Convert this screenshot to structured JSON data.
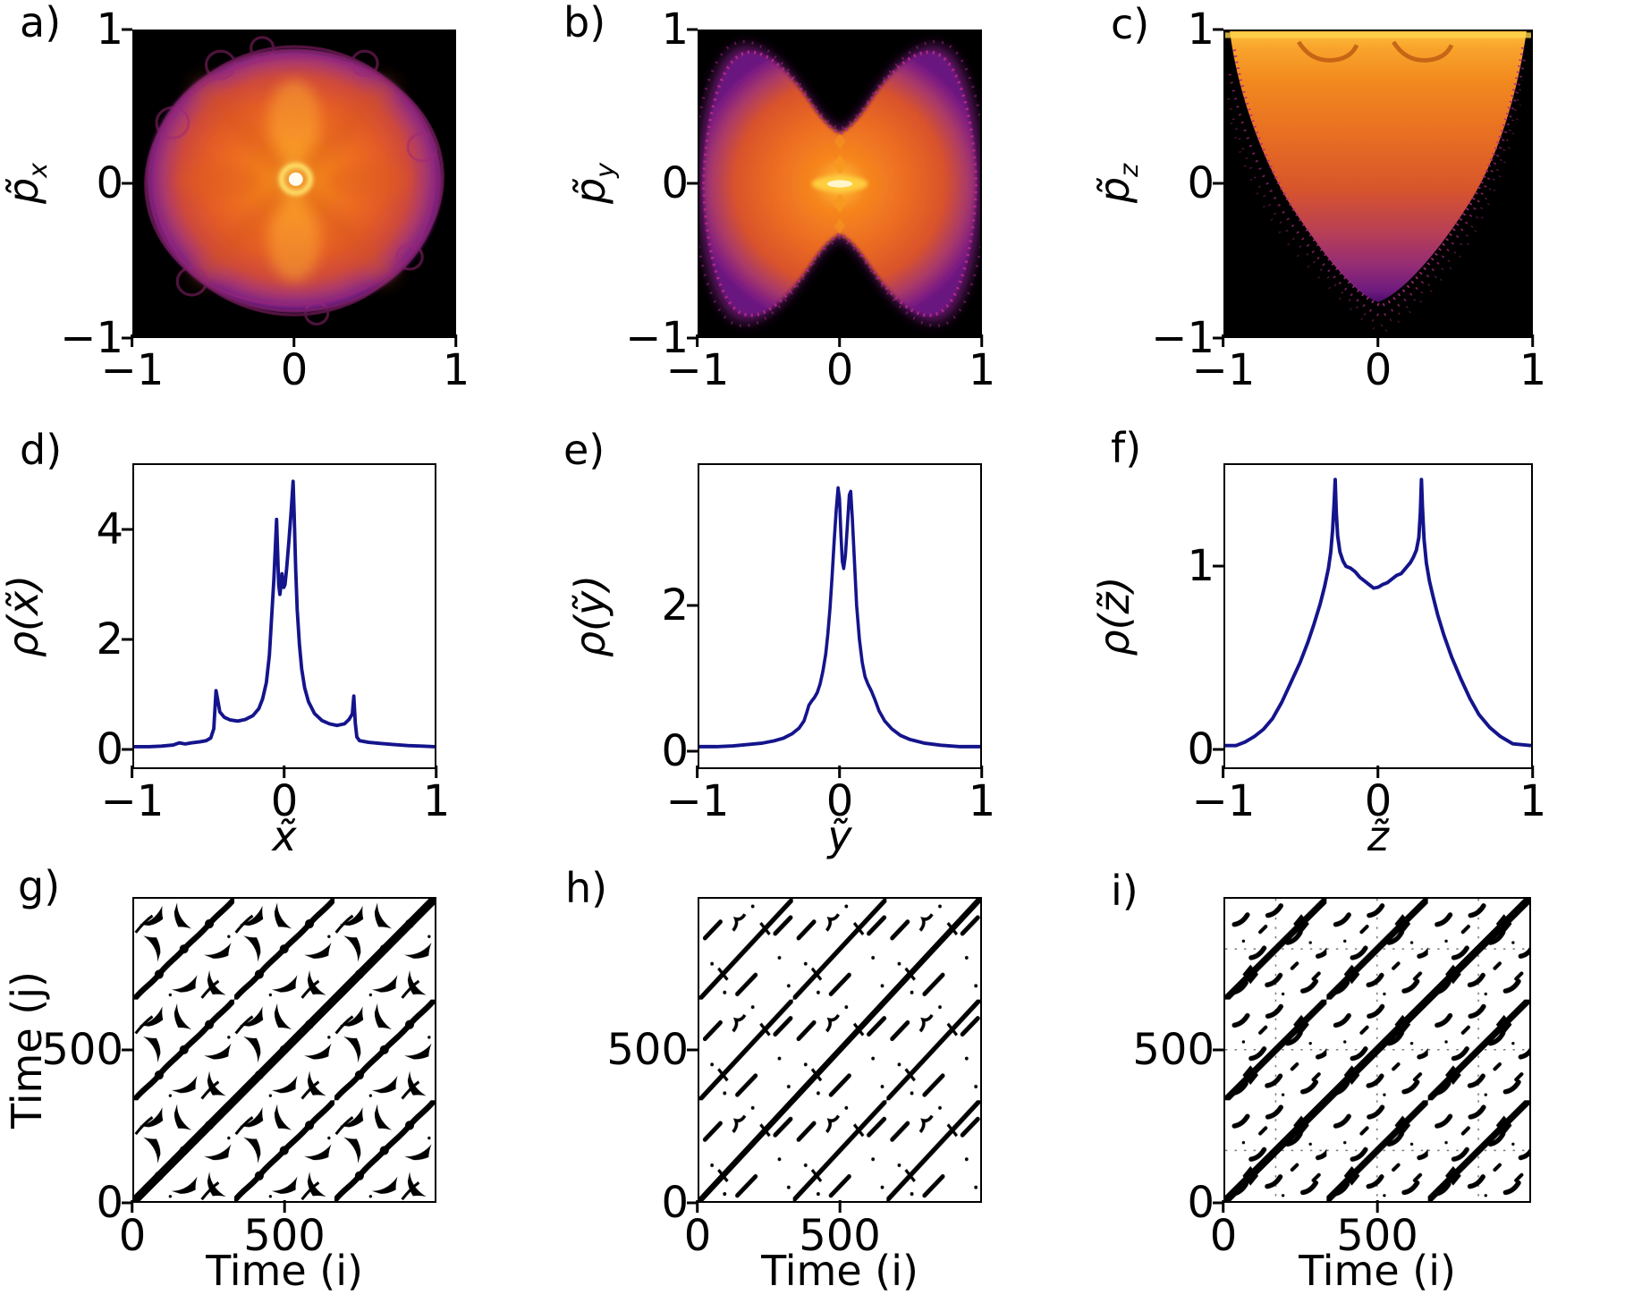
{
  "panels": {
    "a": {
      "letter": "a)",
      "ylabel_base": "p̃",
      "ylabel_sub": "x",
      "yticks": [
        "1",
        "0",
        "−1"
      ],
      "xticks": [
        "−1",
        "0",
        "1"
      ]
    },
    "b": {
      "letter": "b)",
      "ylabel_base": "p̃",
      "ylabel_sub": "y",
      "yticks": [
        "1",
        "0",
        "−1"
      ],
      "xticks": [
        "−1",
        "0",
        "1"
      ]
    },
    "c": {
      "letter": "c)",
      "ylabel_base": "p̃",
      "ylabel_sub": "z",
      "yticks": [
        "1",
        "0",
        "−1"
      ],
      "xticks": [
        "−1",
        "0",
        "1"
      ]
    },
    "d": {
      "letter": "d)",
      "ylabel": "ρ(x̃)",
      "xlabel": "x̃",
      "yticks": [
        "4",
        "2",
        "0"
      ],
      "xticks": [
        "−1",
        "0",
        "1"
      ]
    },
    "e": {
      "letter": "e)",
      "ylabel": "ρ(ỹ)",
      "xlabel": "ỹ",
      "yticks": [
        "2",
        "0"
      ],
      "xticks": [
        "−1",
        "0",
        "1"
      ]
    },
    "f": {
      "letter": "f)",
      "ylabel": "ρ(z̃)",
      "xlabel": "z̃",
      "yticks": [
        "1",
        "0"
      ],
      "xticks": [
        "−1",
        "0",
        "1"
      ]
    },
    "g": {
      "letter": "g)",
      "ylabel": "Time (j)",
      "xlabel": "Time (i)",
      "yticks": [
        "500",
        "0"
      ],
      "xticks": [
        "0",
        "500"
      ]
    },
    "h": {
      "letter": "h)",
      "xlabel": "Time (i)",
      "yticks": [
        "500",
        "0"
      ],
      "xticks": [
        "0",
        "500"
      ]
    },
    "i": {
      "letter": "i)",
      "xlabel": "Time (i)",
      "yticks": [
        "500",
        "0"
      ],
      "xticks": [
        "0",
        "500"
      ]
    }
  },
  "colors": {
    "line": "#14148c",
    "cmap_black": "#000000",
    "cmap_purple": "#6f1a80",
    "cmap_magenta": "#a62a7c",
    "cmap_red": "#d9532b",
    "cmap_orange": "#f3771e",
    "cmap_yellow": "#fde74a",
    "cmap_core": "#fffdf0"
  },
  "chart_data": [
    {
      "id": "a",
      "type": "heatmap",
      "ylabel": "p̃_x",
      "xlim": [
        -1,
        1
      ],
      "ylim": [
        -1,
        1
      ],
      "xticks": [
        -1,
        0,
        1
      ],
      "yticks": [
        -1,
        0,
        1
      ],
      "colormap": "inferno on black",
      "description": "Phase-space density x vs p_x: near-circular bright orange region of radius ~0.95 centered at the origin, bright yellow-white core ring at (0,0), brighter vertical streaks and darker X-shaped bands forming a butterfly pattern, magenta looped filaments around the rim on a black background"
    },
    {
      "id": "b",
      "type": "heatmap",
      "ylabel": "p̃_y",
      "xlim": [
        -1,
        1
      ],
      "ylim": [
        -1,
        1
      ],
      "xticks": [
        -1,
        0,
        1
      ],
      "yticks": [
        -1,
        0,
        1
      ],
      "colormap": "inferno on black",
      "description": "Phase-space density y vs p_y: bowtie/butterfly-shaped region pinched at x≈0 to |p_y|≲0.35, lobes reaching |p_y|≈0.95 near x≈±0.75, bright yellow horizontal lens at the origin with a vertical chain of brighter diamonds, speckled magenta boundary on black"
    },
    {
      "id": "c",
      "type": "heatmap",
      "ylabel": "p̃_z",
      "xlim": [
        -1,
        1
      ],
      "ylim": [
        -1,
        1
      ],
      "xticks": [
        -1,
        0,
        1
      ],
      "yticks": [
        -1,
        0,
        1
      ],
      "colormap": "inferno on black",
      "description": "Phase-space density z vs p_z: parabolic bowl filled upward, brightest orange-yellow band along p_z≈1 with two darker eddy curls near top center, intensity fading downward into scattered magenta dots toward the vertex near (0.05,-0.95) on black"
    },
    {
      "id": "d",
      "type": "line",
      "xlabel": "x̃",
      "ylabel": "ρ(x̃)",
      "xlim": [
        -1,
        1
      ],
      "ylim": [
        -0.36,
        5.2
      ],
      "xticks": [
        -1,
        0,
        1
      ],
      "yticks": [
        0,
        2,
        4
      ],
      "line_color": "#14148c",
      "grid": false,
      "points": [
        [
          -1,
          0.02
        ],
        [
          -0.9,
          0.02
        ],
        [
          -0.82,
          0.03
        ],
        [
          -0.74,
          0.05
        ],
        [
          -0.7,
          0.09
        ],
        [
          -0.66,
          0.07
        ],
        [
          -0.62,
          0.09
        ],
        [
          -0.56,
          0.11
        ],
        [
          -0.52,
          0.13
        ],
        [
          -0.49,
          0.18
        ],
        [
          -0.47,
          0.35
        ],
        [
          -0.455,
          1.05
        ],
        [
          -0.445,
          0.9
        ],
        [
          -0.43,
          0.66
        ],
        [
          -0.4,
          0.56
        ],
        [
          -0.36,
          0.51
        ],
        [
          -0.31,
          0.49
        ],
        [
          -0.26,
          0.52
        ],
        [
          -0.21,
          0.59
        ],
        [
          -0.17,
          0.72
        ],
        [
          -0.145,
          0.9
        ],
        [
          -0.12,
          1.2
        ],
        [
          -0.1,
          1.7
        ],
        [
          -0.085,
          2.4
        ],
        [
          -0.07,
          3.1
        ],
        [
          -0.06,
          3.7
        ],
        [
          -0.052,
          4.2
        ],
        [
          -0.045,
          3.6
        ],
        [
          -0.038,
          3.0
        ],
        [
          -0.03,
          2.82
        ],
        [
          -0.022,
          3.0
        ],
        [
          -0.016,
          3.2
        ],
        [
          -0.01,
          3.05
        ],
        [
          -0.004,
          2.95
        ],
        [
          0.004,
          3.0
        ],
        [
          0.015,
          3.3
        ],
        [
          0.03,
          3.8
        ],
        [
          0.045,
          4.35
        ],
        [
          0.058,
          4.9
        ],
        [
          0.065,
          4.3
        ],
        [
          0.075,
          3.3
        ],
        [
          0.085,
          2.55
        ],
        [
          0.1,
          1.9
        ],
        [
          0.115,
          1.45
        ],
        [
          0.135,
          1.1
        ],
        [
          0.16,
          0.85
        ],
        [
          0.2,
          0.63
        ],
        [
          0.25,
          0.5
        ],
        [
          0.3,
          0.44
        ],
        [
          0.35,
          0.41
        ],
        [
          0.4,
          0.44
        ],
        [
          0.43,
          0.52
        ],
        [
          0.452,
          0.62
        ],
        [
          0.462,
          0.95
        ],
        [
          0.472,
          0.45
        ],
        [
          0.482,
          0.2
        ],
        [
          0.5,
          0.13
        ],
        [
          0.56,
          0.1
        ],
        [
          0.64,
          0.08
        ],
        [
          0.72,
          0.06
        ],
        [
          0.82,
          0.04
        ],
        [
          0.92,
          0.03
        ],
        [
          1,
          0.02
        ]
      ]
    },
    {
      "id": "e",
      "type": "line",
      "xlabel": "ỹ",
      "ylabel": "ρ(ỹ)",
      "xlim": [
        -1,
        1
      ],
      "ylim": [
        -0.27,
        3.97
      ],
      "xticks": [
        -1,
        0,
        1
      ],
      "yticks": [
        0,
        2
      ],
      "line_color": "#14148c",
      "grid": false,
      "points": [
        [
          -1,
          0.02
        ],
        [
          -0.88,
          0.02
        ],
        [
          -0.76,
          0.03
        ],
        [
          -0.65,
          0.05
        ],
        [
          -0.55,
          0.07
        ],
        [
          -0.47,
          0.1
        ],
        [
          -0.4,
          0.14
        ],
        [
          -0.34,
          0.2
        ],
        [
          -0.29,
          0.28
        ],
        [
          -0.255,
          0.38
        ],
        [
          -0.235,
          0.5
        ],
        [
          -0.22,
          0.6
        ],
        [
          -0.2,
          0.66
        ],
        [
          -0.18,
          0.71
        ],
        [
          -0.16,
          0.78
        ],
        [
          -0.14,
          0.9
        ],
        [
          -0.12,
          1.08
        ],
        [
          -0.1,
          1.32
        ],
        [
          -0.085,
          1.6
        ],
        [
          -0.07,
          1.95
        ],
        [
          -0.055,
          2.4
        ],
        [
          -0.04,
          2.9
        ],
        [
          -0.025,
          3.35
        ],
        [
          -0.012,
          3.65
        ],
        [
          -0.002,
          3.5
        ],
        [
          0.008,
          3.0
        ],
        [
          0.018,
          2.62
        ],
        [
          0.028,
          2.52
        ],
        [
          0.04,
          2.7
        ],
        [
          0.055,
          3.15
        ],
        [
          0.068,
          3.55
        ],
        [
          0.078,
          3.6
        ],
        [
          0.09,
          3.2
        ],
        [
          0.105,
          2.6
        ],
        [
          0.12,
          2.0
        ],
        [
          0.14,
          1.52
        ],
        [
          0.16,
          1.2
        ],
        [
          0.18,
          1.0
        ],
        [
          0.2,
          0.9
        ],
        [
          0.225,
          0.8
        ],
        [
          0.25,
          0.68
        ],
        [
          0.28,
          0.52
        ],
        [
          0.32,
          0.38
        ],
        [
          0.37,
          0.27
        ],
        [
          0.43,
          0.18
        ],
        [
          0.5,
          0.12
        ],
        [
          0.6,
          0.07
        ],
        [
          0.72,
          0.04
        ],
        [
          0.86,
          0.02
        ],
        [
          1,
          0.02
        ]
      ]
    },
    {
      "id": "f",
      "type": "line",
      "xlabel": "z̃",
      "ylabel": "ρ(z̃)",
      "xlim": [
        -1,
        1
      ],
      "ylim": [
        -0.11,
        1.56
      ],
      "xticks": [
        -1,
        0,
        1
      ],
      "yticks": [
        0,
        1
      ],
      "line_color": "#14148c",
      "grid": false,
      "points": [
        [
          -1,
          0.01
        ],
        [
          -0.93,
          0.01
        ],
        [
          -0.87,
          0.03
        ],
        [
          -0.81,
          0.06
        ],
        [
          -0.75,
          0.1
        ],
        [
          -0.69,
          0.16
        ],
        [
          -0.63,
          0.25
        ],
        [
          -0.57,
          0.36
        ],
        [
          -0.51,
          0.47
        ],
        [
          -0.46,
          0.58
        ],
        [
          -0.42,
          0.68
        ],
        [
          -0.38,
          0.79
        ],
        [
          -0.35,
          0.89
        ],
        [
          -0.325,
          0.99
        ],
        [
          -0.31,
          1.08
        ],
        [
          -0.298,
          1.2
        ],
        [
          -0.288,
          1.35
        ],
        [
          -0.281,
          1.48
        ],
        [
          -0.274,
          1.3
        ],
        [
          -0.265,
          1.17
        ],
        [
          -0.25,
          1.08
        ],
        [
          -0.23,
          1.03
        ],
        [
          -0.21,
          1.0
        ],
        [
          -0.18,
          0.99
        ],
        [
          -0.15,
          0.97
        ],
        [
          -0.12,
          0.94
        ],
        [
          -0.09,
          0.92
        ],
        [
          -0.06,
          0.9
        ],
        [
          -0.03,
          0.88
        ],
        [
          0,
          0.885
        ],
        [
          0.03,
          0.9
        ],
        [
          0.06,
          0.91
        ],
        [
          0.09,
          0.93
        ],
        [
          0.12,
          0.95
        ],
        [
          0.15,
          0.96
        ],
        [
          0.18,
          0.99
        ],
        [
          0.21,
          1.02
        ],
        [
          0.23,
          1.05
        ],
        [
          0.25,
          1.09
        ],
        [
          0.266,
          1.16
        ],
        [
          0.276,
          1.3
        ],
        [
          0.283,
          1.48
        ],
        [
          0.29,
          1.32
        ],
        [
          0.3,
          1.15
        ],
        [
          0.315,
          1.02
        ],
        [
          0.335,
          0.92
        ],
        [
          0.36,
          0.83
        ],
        [
          0.39,
          0.73
        ],
        [
          0.43,
          0.62
        ],
        [
          0.48,
          0.5
        ],
        [
          0.54,
          0.38
        ],
        [
          0.6,
          0.27
        ],
        [
          0.66,
          0.18
        ],
        [
          0.73,
          0.11
        ],
        [
          0.8,
          0.06
        ],
        [
          0.88,
          0.02
        ],
        [
          1,
          0.01
        ]
      ]
    },
    {
      "id": "g",
      "type": "recurrence",
      "xlabel": "Time (i)",
      "ylabel": "Time (j)",
      "xlim": [
        0,
        1000
      ],
      "ylim": [
        0,
        1000
      ],
      "xticks": [
        0,
        500
      ],
      "yticks": [
        0,
        500
      ],
      "period": 333,
      "description": "Dense recurrence plot: black wedge/checkmark motifs on a ~110-step grid, wavy knotted diagonal lines with period ~333, thick main diagonal"
    },
    {
      "id": "h",
      "type": "recurrence",
      "xlabel": "Time (i)",
      "ylabel": "",
      "xlim": [
        0,
        1000
      ],
      "ylim": [
        0,
        1000
      ],
      "xticks": [
        0,
        500
      ],
      "yticks": [
        0,
        500
      ],
      "period": 333,
      "description": "Sparse recurrence plot: thin diagonals with x-shaped knots every ~110 steps, period ~333, short parallel dashes, squiggles and scattered dots"
    },
    {
      "id": "i",
      "type": "recurrence",
      "xlabel": "Time (i)",
      "ylabel": "",
      "xlim": [
        0,
        1000
      ],
      "ylim": [
        0,
        1000
      ],
      "xticks": [
        0,
        500
      ],
      "yticks": [
        0,
        500
      ],
      "period": 333,
      "description": "Recurrence plot: thick knotted diagonals of period ~333 with star-shaped knots, many short curved comma-like dashes, faint dotted grid lines"
    }
  ]
}
